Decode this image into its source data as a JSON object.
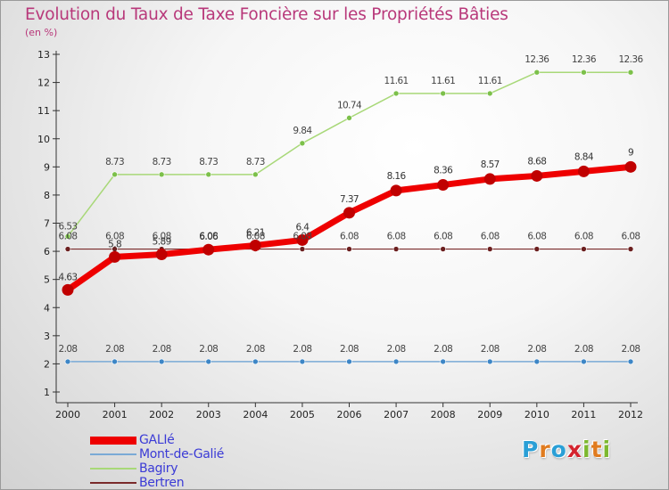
{
  "title": "Evolution du Taux de Taxe Foncière sur les Propriétés Bâties",
  "subtitle": "(en %)",
  "colors": {
    "title": "#b8387a",
    "legend_text": "#3b3bd6",
    "axis": "#333333"
  },
  "logo": {
    "letters": [
      "P",
      "r",
      "o",
      "x",
      "i",
      "t",
      "i"
    ],
    "colors": [
      "#2a9fd6",
      "#e07b1f",
      "#2a9fd6",
      "#d4232e",
      "#7cb82f",
      "#e07b1f",
      "#7cb82f"
    ]
  },
  "chart_data": {
    "type": "line",
    "x": [
      "2000",
      "2001",
      "2002",
      "2003",
      "2004",
      "2005",
      "2006",
      "2007",
      "2008",
      "2009",
      "2010",
      "2011",
      "2012"
    ],
    "ylim": [
      1,
      13
    ],
    "yticks": [
      1,
      2,
      3,
      4,
      5,
      6,
      7,
      8,
      9,
      10,
      11,
      12,
      13
    ],
    "grid": false,
    "legend_position": "bottom-left",
    "series": [
      {
        "name": "Bertren",
        "color": "#7a2a2a",
        "point_color": "#6b1f1f",
        "width": 1.2,
        "values": [
          6.08,
          6.08,
          6.08,
          6.08,
          6.08,
          6.08,
          6.08,
          6.08,
          6.08,
          6.08,
          6.08,
          6.08,
          6.08
        ],
        "labels": [
          "6.08",
          "6.08",
          "6.08",
          "6.08",
          "6.08",
          "6.08",
          "6.08",
          "6.08",
          "6.08",
          "6.08",
          "6.08",
          "6.08",
          "6.08"
        ],
        "label_color": "#444444",
        "label_dy": [
          -11,
          -11,
          -11,
          -11,
          -11,
          -11,
          -11,
          -11,
          -11,
          -11,
          -11,
          -11,
          -11
        ]
      },
      {
        "name": "Mont-de-Galié",
        "color": "#7aaad6",
        "point_color": "#3d86c6",
        "width": 1.5,
        "values": [
          2.08,
          2.08,
          2.08,
          2.08,
          2.08,
          2.08,
          2.08,
          2.08,
          2.08,
          2.08,
          2.08,
          2.08,
          2.08
        ],
        "labels": [
          "2.08",
          "2.08",
          "2.08",
          "2.08",
          "2.08",
          "2.08",
          "2.08",
          "2.08",
          "2.08",
          "2.08",
          "2.08",
          "2.08",
          "2.08"
        ],
        "label_color": "#444444",
        "label_dy": [
          -11,
          -11,
          -11,
          -11,
          -11,
          -11,
          -11,
          -11,
          -11,
          -11,
          -11,
          -11,
          -11
        ]
      },
      {
        "name": "Bagiry",
        "color": "#a8d878",
        "point_color": "#7cc04a",
        "width": 1.5,
        "values": [
          6.53,
          8.73,
          8.73,
          8.73,
          8.73,
          9.84,
          10.74,
          11.61,
          11.61,
          11.61,
          12.36,
          12.36,
          12.36
        ],
        "labels": [
          "6.53",
          "8.73",
          "8.73",
          "8.73",
          "8.73",
          "9.84",
          "10.74",
          "11.61",
          "11.61",
          "11.61",
          "12.36",
          "12.36",
          "12.36"
        ],
        "label_color": "#444444",
        "label_dy": [
          -8,
          -11,
          -11,
          -11,
          -11,
          -11,
          -11,
          -11,
          -11,
          -11,
          -11,
          -11,
          -11
        ]
      },
      {
        "name": "GALIé",
        "color": "#ee0000",
        "point_color": "#c00000",
        "width": 7,
        "values": [
          4.63,
          5.8,
          5.89,
          6.06,
          6.21,
          6.4,
          7.37,
          8.16,
          8.36,
          8.57,
          8.68,
          8.84,
          9.0
        ],
        "labels": [
          "4.63",
          "5.8",
          "5.89",
          "6.06",
          "6.21",
          "6.4",
          "7.37",
          "8.16",
          "8.36",
          "8.57",
          "8.68",
          "8.84",
          "9"
        ],
        "label_color": "#333333",
        "label_dy": [
          -11,
          -11,
          -11,
          -11,
          -11,
          -11,
          -12,
          -13,
          -13,
          -13,
          -13,
          -13,
          -13
        ]
      }
    ],
    "legend_order": [
      "GALIé",
      "Mont-de-Galié",
      "Bagiry",
      "Bertren"
    ]
  }
}
